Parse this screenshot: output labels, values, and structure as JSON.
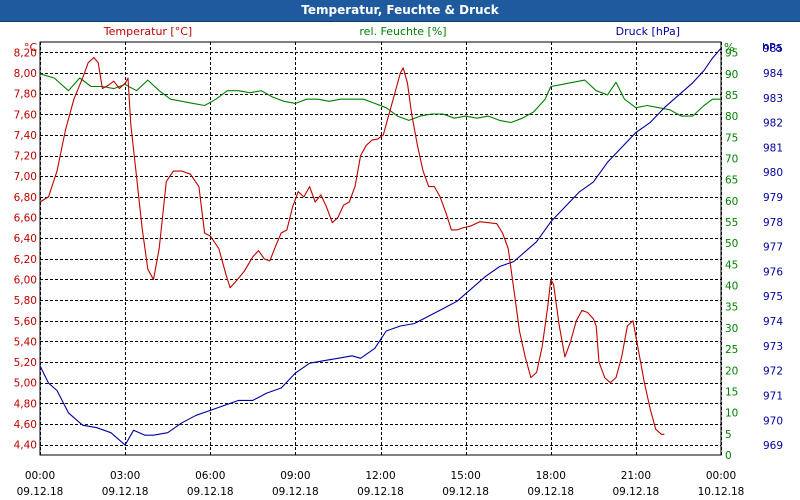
{
  "window": {
    "title": "Temperatur, Feuchte & Druck"
  },
  "colors": {
    "temperature": "#c00000",
    "humidity": "#008000",
    "pressure": "#0000a0",
    "grid": "#000000",
    "title_bg": "#1f5a9e"
  },
  "chart_data": {
    "type": "line",
    "title": "Temperatur, Feuchte & Druck",
    "legend": {
      "temperature": "Temperatur [°C]",
      "humidity": "rel. Feuchte [%]",
      "pressure": "Druck [hPa]"
    },
    "axes": {
      "left": {
        "unit": "°C",
        "min": 4.3,
        "max": 8.3,
        "ticks": [
          "8,20",
          "8,00",
          "7,80",
          "7,60",
          "7,40",
          "7,20",
          "7,00",
          "6,80",
          "6,60",
          "6,40",
          "6,20",
          "6,00",
          "5,80",
          "5,60",
          "5,40",
          "5,20",
          "5,00",
          "4,80",
          "4,60",
          "4,40"
        ],
        "tick_values": [
          8.2,
          8.0,
          7.8,
          7.6,
          7.4,
          7.2,
          7.0,
          6.8,
          6.6,
          6.4,
          6.2,
          6.0,
          5.8,
          5.6,
          5.4,
          5.2,
          5.0,
          4.8,
          4.6,
          4.4
        ]
      },
      "right1": {
        "unit": "%",
        "min": 0,
        "max": 97.5,
        "ticks": [
          "95",
          "90",
          "85",
          "80",
          "75",
          "70",
          "65",
          "60",
          "55",
          "50",
          "45",
          "40",
          "35",
          "30",
          "25",
          "20",
          "15",
          "10",
          "5",
          "0"
        ],
        "tick_values": [
          95,
          90,
          85,
          80,
          75,
          70,
          65,
          60,
          55,
          50,
          45,
          40,
          35,
          30,
          25,
          20,
          15,
          10,
          5,
          0
        ]
      },
      "right2": {
        "unit": "hPa",
        "min": 968.6,
        "max": 985.25,
        "ticks": [
          "985",
          "984",
          "983",
          "982",
          "981",
          "980",
          "979",
          "978",
          "977",
          "976",
          "975",
          "974",
          "973",
          "972",
          "971",
          "970",
          "969"
        ],
        "tick_values": [
          985,
          984,
          983,
          982,
          981,
          980,
          979,
          978,
          977,
          976,
          975,
          974,
          973,
          972,
          971,
          970,
          969
        ]
      },
      "x": {
        "min": 0,
        "max": 24,
        "ticks": [
          {
            "time": "00:00",
            "date": "09.12.18"
          },
          {
            "time": "03:00",
            "date": "09.12.18"
          },
          {
            "time": "06:00",
            "date": "09.12.18"
          },
          {
            "time": "09:00",
            "date": "09.12.18"
          },
          {
            "time": "12:00",
            "date": "09.12.18"
          },
          {
            "time": "15:00",
            "date": "09.12.18"
          },
          {
            "time": "18:00",
            "date": "09.12.18"
          },
          {
            "time": "21:00",
            "date": "09.12.18"
          },
          {
            "time": "00:00",
            "date": "10.12.18"
          }
        ]
      }
    },
    "series": [
      {
        "name": "Temperatur [°C]",
        "axis": "left",
        "points": [
          [
            0,
            6.75
          ],
          [
            0.3,
            6.8
          ],
          [
            0.6,
            7.05
          ],
          [
            0.9,
            7.45
          ],
          [
            1.2,
            7.75
          ],
          [
            1.5,
            7.95
          ],
          [
            1.7,
            8.1
          ],
          [
            1.9,
            8.15
          ],
          [
            2.05,
            8.1
          ],
          [
            2.2,
            7.85
          ],
          [
            2.4,
            7.88
          ],
          [
            2.6,
            7.92
          ],
          [
            2.8,
            7.85
          ],
          [
            3.0,
            7.9
          ],
          [
            3.1,
            7.95
          ],
          [
            3.2,
            7.5
          ],
          [
            3.4,
            7.0
          ],
          [
            3.6,
            6.5
          ],
          [
            3.8,
            6.1
          ],
          [
            4.0,
            6.0
          ],
          [
            4.2,
            6.3
          ],
          [
            4.45,
            6.95
          ],
          [
            4.7,
            7.05
          ],
          [
            5.0,
            7.05
          ],
          [
            5.3,
            7.02
          ],
          [
            5.6,
            6.9
          ],
          [
            5.8,
            6.45
          ],
          [
            6.0,
            6.42
          ],
          [
            6.3,
            6.3
          ],
          [
            6.55,
            6.05
          ],
          [
            6.7,
            5.92
          ],
          [
            6.9,
            5.98
          ],
          [
            7.2,
            6.08
          ],
          [
            7.5,
            6.22
          ],
          [
            7.7,
            6.28
          ],
          [
            7.9,
            6.2
          ],
          [
            8.1,
            6.18
          ],
          [
            8.3,
            6.32
          ],
          [
            8.5,
            6.45
          ],
          [
            8.7,
            6.48
          ],
          [
            8.9,
            6.7
          ],
          [
            9.1,
            6.85
          ],
          [
            9.3,
            6.8
          ],
          [
            9.5,
            6.9
          ],
          [
            9.7,
            6.75
          ],
          [
            9.9,
            6.82
          ],
          [
            10.1,
            6.7
          ],
          [
            10.3,
            6.55
          ],
          [
            10.5,
            6.6
          ],
          [
            10.7,
            6.72
          ],
          [
            10.9,
            6.75
          ],
          [
            11.1,
            6.9
          ],
          [
            11.3,
            7.2
          ],
          [
            11.5,
            7.3
          ],
          [
            11.7,
            7.35
          ],
          [
            11.9,
            7.36
          ],
          [
            12.1,
            7.4
          ],
          [
            12.3,
            7.6
          ],
          [
            12.5,
            7.8
          ],
          [
            12.7,
            8.0
          ],
          [
            12.8,
            8.05
          ],
          [
            12.95,
            7.9
          ],
          [
            13.1,
            7.6
          ],
          [
            13.3,
            7.3
          ],
          [
            13.5,
            7.05
          ],
          [
            13.7,
            6.9
          ],
          [
            13.9,
            6.9
          ],
          [
            14.1,
            6.8
          ],
          [
            14.3,
            6.65
          ],
          [
            14.5,
            6.48
          ],
          [
            14.7,
            6.48
          ],
          [
            14.9,
            6.5
          ],
          [
            15.2,
            6.52
          ],
          [
            15.5,
            6.56
          ],
          [
            15.8,
            6.55
          ],
          [
            16.1,
            6.54
          ],
          [
            16.3,
            6.45
          ],
          [
            16.5,
            6.3
          ],
          [
            16.7,
            5.9
          ],
          [
            16.9,
            5.5
          ],
          [
            17.1,
            5.25
          ],
          [
            17.3,
            5.05
          ],
          [
            17.5,
            5.1
          ],
          [
            17.7,
            5.35
          ],
          [
            17.9,
            5.75
          ],
          [
            18.0,
            6.0
          ],
          [
            18.1,
            5.95
          ],
          [
            18.3,
            5.55
          ],
          [
            18.5,
            5.25
          ],
          [
            18.7,
            5.4
          ],
          [
            18.9,
            5.6
          ],
          [
            19.1,
            5.7
          ],
          [
            19.3,
            5.68
          ],
          [
            19.5,
            5.62
          ],
          [
            19.6,
            5.55
          ],
          [
            19.7,
            5.2
          ],
          [
            19.9,
            5.05
          ],
          [
            20.1,
            5.0
          ],
          [
            20.3,
            5.05
          ],
          [
            20.5,
            5.25
          ],
          [
            20.7,
            5.55
          ],
          [
            20.9,
            5.6
          ],
          [
            21.1,
            5.3
          ],
          [
            21.3,
            5.0
          ],
          [
            21.5,
            4.75
          ],
          [
            21.7,
            4.55
          ],
          [
            21.9,
            4.5
          ],
          [
            22.0,
            4.5
          ]
        ]
      },
      {
        "name": "rel. Feuchte [%]",
        "axis": "right1",
        "points": [
          [
            0,
            90
          ],
          [
            0.5,
            89
          ],
          [
            1.0,
            86
          ],
          [
            1.4,
            89
          ],
          [
            1.8,
            87
          ],
          [
            2.2,
            87
          ],
          [
            2.6,
            86.5
          ],
          [
            3.0,
            87.5
          ],
          [
            3.4,
            86
          ],
          [
            3.8,
            88.5
          ],
          [
            4.2,
            86
          ],
          [
            4.6,
            84
          ],
          [
            5.0,
            83.5
          ],
          [
            5.4,
            83
          ],
          [
            5.8,
            82.5
          ],
          [
            6.2,
            84
          ],
          [
            6.6,
            86
          ],
          [
            7.0,
            86
          ],
          [
            7.4,
            85.5
          ],
          [
            7.8,
            86
          ],
          [
            8.2,
            84.5
          ],
          [
            8.6,
            83.5
          ],
          [
            9.0,
            83
          ],
          [
            9.4,
            84
          ],
          [
            9.8,
            84
          ],
          [
            10.2,
            83.5
          ],
          [
            10.6,
            84
          ],
          [
            11.0,
            84
          ],
          [
            11.4,
            84
          ],
          [
            11.8,
            83
          ],
          [
            12.2,
            82
          ],
          [
            12.6,
            80
          ],
          [
            13.0,
            79
          ],
          [
            13.4,
            80
          ],
          [
            13.8,
            80.5
          ],
          [
            14.2,
            80.5
          ],
          [
            14.6,
            79.5
          ],
          [
            15.0,
            80
          ],
          [
            15.4,
            79.5
          ],
          [
            15.8,
            80
          ],
          [
            16.2,
            79
          ],
          [
            16.6,
            78.5
          ],
          [
            17.0,
            79.5
          ],
          [
            17.4,
            81
          ],
          [
            17.8,
            84
          ],
          [
            18.0,
            87
          ],
          [
            18.4,
            87.5
          ],
          [
            18.8,
            88
          ],
          [
            19.2,
            88.5
          ],
          [
            19.6,
            86
          ],
          [
            20.0,
            85
          ],
          [
            20.3,
            88
          ],
          [
            20.6,
            84
          ],
          [
            21.0,
            82
          ],
          [
            21.4,
            82.5
          ],
          [
            21.8,
            82
          ],
          [
            22.2,
            81.5
          ],
          [
            22.6,
            80
          ],
          [
            23.0,
            80
          ],
          [
            23.4,
            82.5
          ],
          [
            23.7,
            84
          ],
          [
            24.0,
            84
          ]
        ]
      },
      {
        "name": "Druck [hPa]",
        "axis": "right2",
        "points": [
          [
            0,
            972.2
          ],
          [
            0.3,
            971.5
          ],
          [
            0.6,
            971.2
          ],
          [
            1.0,
            970.3
          ],
          [
            1.5,
            969.8
          ],
          [
            2.0,
            969.7
          ],
          [
            2.5,
            969.5
          ],
          [
            2.8,
            969.2
          ],
          [
            3.0,
            969
          ],
          [
            3.3,
            969.6
          ],
          [
            3.7,
            969.4
          ],
          [
            4.0,
            969.4
          ],
          [
            4.5,
            969.5
          ],
          [
            5.0,
            969.9
          ],
          [
            5.5,
            970.2
          ],
          [
            6.0,
            970.4
          ],
          [
            6.5,
            970.6
          ],
          [
            7.0,
            970.8
          ],
          [
            7.5,
            970.8
          ],
          [
            8.0,
            971.1
          ],
          [
            8.5,
            971.3
          ],
          [
            9.0,
            971.9
          ],
          [
            9.5,
            972.3
          ],
          [
            10.0,
            972.4
          ],
          [
            10.5,
            972.5
          ],
          [
            11.0,
            972.6
          ],
          [
            11.3,
            972.5
          ],
          [
            11.8,
            972.9
          ],
          [
            12.2,
            973.6
          ],
          [
            12.7,
            973.8
          ],
          [
            13.2,
            973.9
          ],
          [
            13.7,
            974.2
          ],
          [
            14.2,
            974.5
          ],
          [
            14.7,
            974.8
          ],
          [
            15.2,
            975.3
          ],
          [
            15.7,
            975.8
          ],
          [
            16.2,
            976.2
          ],
          [
            16.7,
            976.4
          ],
          [
            17.0,
            976.7
          ],
          [
            17.5,
            977.2
          ],
          [
            18.0,
            978
          ],
          [
            18.5,
            978.6
          ],
          [
            19.0,
            979.2
          ],
          [
            19.5,
            979.6
          ],
          [
            20.0,
            980.4
          ],
          [
            20.5,
            981
          ],
          [
            21.0,
            981.6
          ],
          [
            21.5,
            982
          ],
          [
            22.0,
            982.6
          ],
          [
            22.5,
            983.1
          ],
          [
            23.0,
            983.6
          ],
          [
            23.4,
            984.1
          ],
          [
            23.7,
            984.6
          ],
          [
            24.0,
            985
          ]
        ]
      }
    ]
  }
}
